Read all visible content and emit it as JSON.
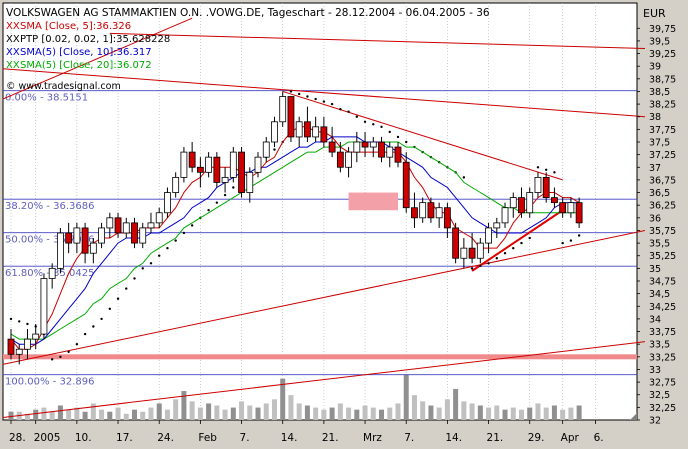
{
  "chart_data": {
    "type": "candlestick",
    "title": "VOLKSWAGEN AG STAMMAKTIEN O.N. .VOWG.DE, Tageschart - 28.12.2004 - 06.04.2005 - 36",
    "currency": "EUR",
    "watermark": "© www.tradesignal.com",
    "legend": [
      {
        "prefix": "XX",
        "text": "SMA [Close, 5]:36.326",
        "color": "#cc0000"
      },
      {
        "prefix": "XX",
        "text": "PTP [0.02, 0.02, 1]:35.628228",
        "color": "#000000"
      },
      {
        "prefix": "XX",
        "text": "SMA(5) [Close, 10]:36.317",
        "color": "#0000cc"
      },
      {
        "prefix": "XX",
        "text": "SMA(5) [Close, 20]:36.072",
        "color": "#00aa00"
      }
    ],
    "ylim": [
      32,
      40
    ],
    "y_ticks": [
      32,
      32.25,
      32.5,
      32.75,
      33,
      33.25,
      33.5,
      33.75,
      34,
      34.25,
      34.5,
      34.75,
      35,
      35.25,
      35.5,
      35.75,
      36,
      36.25,
      36.5,
      36.75,
      37,
      37.25,
      37.5,
      37.75,
      38,
      38.25,
      38.5,
      38.75,
      39,
      39.25,
      39.5,
      39.75
    ],
    "y_tick_labels": [
      "32",
      "32,25",
      "32,5",
      "32,75",
      "33",
      "33,25",
      "33,5",
      "33,75",
      "34",
      "34,25",
      "34,5",
      "34,75",
      "35",
      "35,25",
      "35,5",
      "35,75",
      "36",
      "36,25",
      "36,5",
      "36,75",
      "37",
      "37,25",
      "37,5",
      "37,75",
      "38",
      "38,25",
      "38,5",
      "38,75",
      "39",
      "39,25",
      "39,5",
      "39,75"
    ],
    "x_tick_labels": [
      {
        "i": 0,
        "label": "28."
      },
      {
        "i": 3,
        "label": "2005"
      },
      {
        "i": 8,
        "label": "10."
      },
      {
        "i": 13,
        "label": "17."
      },
      {
        "i": 18,
        "label": "24."
      },
      {
        "i": 23,
        "label": "Feb"
      },
      {
        "i": 28,
        "label": "7."
      },
      {
        "i": 33,
        "label": "14."
      },
      {
        "i": 38,
        "label": "21."
      },
      {
        "i": 43,
        "label": "Mrz"
      },
      {
        "i": 48,
        "label": "7."
      },
      {
        "i": 53,
        "label": "14."
      },
      {
        "i": 58,
        "label": "21."
      },
      {
        "i": 63,
        "label": "29."
      },
      {
        "i": 67,
        "label": "Apr"
      },
      {
        "i": 71,
        "label": "6."
      }
    ],
    "fibonacci": [
      {
        "label": "0.00% - 38.5151",
        "value": 38.515
      },
      {
        "label": "38.20% - 36.3686",
        "value": 36.369
      },
      {
        "label": "50.00% - 35.7056",
        "value": 35.706
      },
      {
        "label": "61.80% - 35.0425",
        "value": 35.043
      },
      {
        "label": "100.00% - 32.896",
        "value": 32.896
      }
    ],
    "highlight_level": 33.25,
    "trendlines": [
      {
        "from": [
          -1,
          38.95
        ],
        "to": [
          77,
          38.0
        ],
        "color": "#cc0000"
      },
      {
        "from": [
          -1,
          38.35
        ],
        "to": [
          22,
          39.95
        ],
        "color": "#cc0000"
      },
      {
        "from": [
          12,
          39.65
        ],
        "to": [
          77,
          39.35
        ],
        "color": "#cc0000"
      },
      {
        "from": [
          33,
          38.5
        ],
        "to": [
          67,
          36.75
        ],
        "color": "#cc0000"
      },
      {
        "from": [
          -1,
          33.1
        ],
        "to": [
          77,
          35.75
        ],
        "color": "#cc0000"
      },
      {
        "from": [
          -1,
          32.05
        ],
        "to": [
          77,
          33.55
        ],
        "color": "#cc0000"
      },
      {
        "from": [
          56,
          34.95
        ],
        "to": [
          67,
          36.15
        ],
        "color": "#e00000",
        "width": 2
      }
    ],
    "zones": [
      {
        "from": [
          41,
          36.5
        ],
        "to": [
          47,
          36.15
        ]
      }
    ],
    "ohlc": [
      [
        33.6,
        33.8,
        33.2,
        33.3
      ],
      [
        33.3,
        33.5,
        33.1,
        33.4
      ],
      [
        33.4,
        33.8,
        33.2,
        33.6
      ],
      [
        33.6,
        33.9,
        33.4,
        33.7
      ],
      [
        33.7,
        34.9,
        33.6,
        34.8
      ],
      [
        34.8,
        35.1,
        34.6,
        35.0
      ],
      [
        35.0,
        35.8,
        34.9,
        35.7
      ],
      [
        35.7,
        35.9,
        35.3,
        35.5
      ],
      [
        35.5,
        35.9,
        35.3,
        35.8
      ],
      [
        35.8,
        35.9,
        35.1,
        35.3
      ],
      [
        35.3,
        35.6,
        35.1,
        35.5
      ],
      [
        35.5,
        35.9,
        35.4,
        35.8
      ],
      [
        35.8,
        36.1,
        35.6,
        36.0
      ],
      [
        36.0,
        36.1,
        35.6,
        35.7
      ],
      [
        35.7,
        36.0,
        35.6,
        35.9
      ],
      [
        35.9,
        36.0,
        35.4,
        35.5
      ],
      [
        35.5,
        35.9,
        35.4,
        35.8
      ],
      [
        35.8,
        36.1,
        35.7,
        35.9
      ],
      [
        35.9,
        36.2,
        35.8,
        36.1
      ],
      [
        36.1,
        36.6,
        36.0,
        36.5
      ],
      [
        36.5,
        36.9,
        36.4,
        36.8
      ],
      [
        36.8,
        37.4,
        36.7,
        37.3
      ],
      [
        37.3,
        37.5,
        36.9,
        37.0
      ],
      [
        37.0,
        37.2,
        36.6,
        36.9
      ],
      [
        36.9,
        37.3,
        36.8,
        37.2
      ],
      [
        37.2,
        37.3,
        36.6,
        36.7
      ],
      [
        36.7,
        37.0,
        36.5,
        36.8
      ],
      [
        36.8,
        37.4,
        36.7,
        37.3
      ],
      [
        37.3,
        37.4,
        36.4,
        36.5
      ],
      [
        36.5,
        37.0,
        36.3,
        36.9
      ],
      [
        36.9,
        37.3,
        36.8,
        37.2
      ],
      [
        37.2,
        37.6,
        37.1,
        37.5
      ],
      [
        37.5,
        38.0,
        37.4,
        37.9
      ],
      [
        37.9,
        38.5,
        37.8,
        38.4
      ],
      [
        38.4,
        38.4,
        37.5,
        37.6
      ],
      [
        37.6,
        38.0,
        37.4,
        37.9
      ],
      [
        37.9,
        38.2,
        37.5,
        37.6
      ],
      [
        37.6,
        38.0,
        37.5,
        37.8
      ],
      [
        37.8,
        38.0,
        37.4,
        37.5
      ],
      [
        37.5,
        37.8,
        37.2,
        37.3
      ],
      [
        37.3,
        37.5,
        36.9,
        37.0
      ],
      [
        37.0,
        37.4,
        36.8,
        37.3
      ],
      [
        37.3,
        37.7,
        37.1,
        37.5
      ],
      [
        37.5,
        37.7,
        37.2,
        37.4
      ],
      [
        37.4,
        37.6,
        37.2,
        37.5
      ],
      [
        37.5,
        37.6,
        37.1,
        37.2
      ],
      [
        37.2,
        37.5,
        37.0,
        37.4
      ],
      [
        37.4,
        37.5,
        37.0,
        37.1
      ],
      [
        37.1,
        37.3,
        36.1,
        36.2
      ],
      [
        36.2,
        36.5,
        35.8,
        36.0
      ],
      [
        36.0,
        36.4,
        35.9,
        36.3
      ],
      [
        36.3,
        36.4,
        35.9,
        36.0
      ],
      [
        36.0,
        36.3,
        35.8,
        36.2
      ],
      [
        36.2,
        36.3,
        35.6,
        35.8
      ],
      [
        35.8,
        35.9,
        35.1,
        35.2
      ],
      [
        35.2,
        35.6,
        35.0,
        35.4
      ],
      [
        35.4,
        35.7,
        35.1,
        35.2
      ],
      [
        35.2,
        35.6,
        35.1,
        35.5
      ],
      [
        35.5,
        35.9,
        35.3,
        35.8
      ],
      [
        35.8,
        36.0,
        35.6,
        35.9
      ],
      [
        35.9,
        36.3,
        35.8,
        36.2
      ],
      [
        36.2,
        36.5,
        36.0,
        36.4
      ],
      [
        36.4,
        36.6,
        36.0,
        36.1
      ],
      [
        36.1,
        36.6,
        36.0,
        36.5
      ],
      [
        36.5,
        36.9,
        36.4,
        36.8
      ],
      [
        36.8,
        36.9,
        36.3,
        36.4
      ],
      [
        36.4,
        36.6,
        36.2,
        36.3
      ],
      [
        36.3,
        36.4,
        36.0,
        36.1
      ],
      [
        36.1,
        36.4,
        36.0,
        36.3
      ],
      [
        36.3,
        36.4,
        35.8,
        35.9
      ]
    ],
    "sma5": [
      33.6,
      33.4,
      33.4,
      33.5,
      33.8,
      34.1,
      34.5,
      34.9,
      35.2,
      35.4,
      35.5,
      35.6,
      35.6,
      35.7,
      35.7,
      35.7,
      35.8,
      35.8,
      35.8,
      36.0,
      36.2,
      36.5,
      36.7,
      36.8,
      37.0,
      37.0,
      37.0,
      37.0,
      36.9,
      36.8,
      36.9,
      37.1,
      37.2,
      37.5,
      37.7,
      37.8,
      37.8,
      37.7,
      37.7,
      37.6,
      37.4,
      37.3,
      37.3,
      37.3,
      37.3,
      37.3,
      37.3,
      37.3,
      37.1,
      36.8,
      36.6,
      36.3,
      36.1,
      36.1,
      35.8,
      35.7,
      35.6,
      35.4,
      35.4,
      35.4,
      35.6,
      35.9,
      36.1,
      36.2,
      36.4,
      36.5,
      36.5,
      36.4,
      36.4,
      36.3
    ],
    "sma10": [
      33.6,
      33.5,
      33.5,
      33.5,
      33.6,
      33.8,
      34.0,
      34.2,
      34.4,
      34.6,
      34.9,
      35.1,
      35.3,
      35.5,
      35.6,
      35.6,
      35.6,
      35.7,
      35.7,
      35.8,
      35.9,
      36.0,
      36.2,
      36.3,
      36.4,
      36.6,
      36.7,
      36.8,
      36.9,
      36.9,
      37.0,
      37.0,
      37.1,
      37.2,
      37.3,
      37.4,
      37.4,
      37.5,
      37.5,
      37.6,
      37.6,
      37.6,
      37.6,
      37.5,
      37.5,
      37.5,
      37.4,
      37.3,
      37.2,
      37.1,
      37.0,
      36.8,
      36.7,
      36.6,
      36.4,
      36.2,
      36.0,
      35.9,
      35.8,
      35.7,
      35.7,
      35.7,
      35.7,
      35.8,
      35.9,
      36.0,
      36.2,
      36.3,
      36.3,
      36.3
    ],
    "sma20": [
      33.7,
      33.6,
      33.6,
      33.6,
      33.6,
      33.7,
      33.8,
      33.9,
      34.0,
      34.1,
      34.3,
      34.4,
      34.6,
      34.7,
      34.8,
      35.0,
      35.1,
      35.3,
      35.4,
      35.5,
      35.6,
      35.8,
      35.9,
      36.0,
      36.1,
      36.2,
      36.3,
      36.4,
      36.5,
      36.6,
      36.7,
      36.8,
      36.9,
      37.0,
      37.1,
      37.2,
      37.3,
      37.3,
      37.4,
      37.4,
      37.4,
      37.5,
      37.5,
      37.5,
      37.5,
      37.5,
      37.5,
      37.5,
      37.4,
      37.4,
      37.3,
      37.2,
      37.1,
      37.0,
      36.9,
      36.7,
      36.6,
      36.5,
      36.4,
      36.3,
      36.2,
      36.2,
      36.1,
      36.1,
      36.1,
      36.1,
      36.1,
      36.1,
      36.1,
      36.1
    ],
    "ptp": [
      34.0,
      33.95,
      33.9,
      33.85,
      33.7,
      33.2,
      33.25,
      33.35,
      33.5,
      33.7,
      33.85,
      34.0,
      34.2,
      34.4,
      34.6,
      34.8,
      35.0,
      35.1,
      35.25,
      35.4,
      35.55,
      35.7,
      35.85,
      36.0,
      36.15,
      36.3,
      36.45,
      36.6,
      36.75,
      36.9,
      37.05,
      37.2,
      37.35,
      37.5,
      38.5,
      38.45,
      38.4,
      38.35,
      38.3,
      38.25,
      38.15,
      38.1,
      38.0,
      37.9,
      37.85,
      37.8,
      37.7,
      37.6,
      37.5,
      37.4,
      37.3,
      37.2,
      37.1,
      37.0,
      36.9,
      36.8,
      35.0,
      35.05,
      35.1,
      35.2,
      35.3,
      35.4,
      35.5,
      35.6,
      37.0,
      36.95,
      36.9,
      35.5,
      35.55,
      35.65
    ],
    "volume": [
      0.2,
      0.2,
      0.15,
      0.25,
      0.3,
      0.2,
      0.35,
      0.25,
      0.3,
      0.2,
      0.4,
      0.25,
      0.2,
      0.3,
      0.15,
      0.25,
      0.2,
      0.3,
      0.4,
      0.25,
      0.5,
      0.7,
      0.45,
      0.3,
      0.4,
      0.35,
      0.25,
      0.3,
      0.45,
      0.35,
      0.3,
      0.4,
      0.5,
      1.0,
      0.6,
      0.4,
      0.35,
      0.3,
      0.25,
      0.3,
      0.4,
      0.3,
      0.25,
      0.35,
      0.3,
      0.25,
      0.3,
      0.4,
      1.1,
      0.6,
      0.45,
      0.35,
      0.3,
      0.5,
      0.75,
      0.45,
      0.4,
      0.35,
      0.3,
      0.35,
      0.25,
      0.3,
      0.25,
      0.3,
      0.4,
      0.3,
      0.35,
      0.25,
      0.3,
      0.35
    ],
    "volume_max_units": 1.45,
    "n_slots": 77
  }
}
